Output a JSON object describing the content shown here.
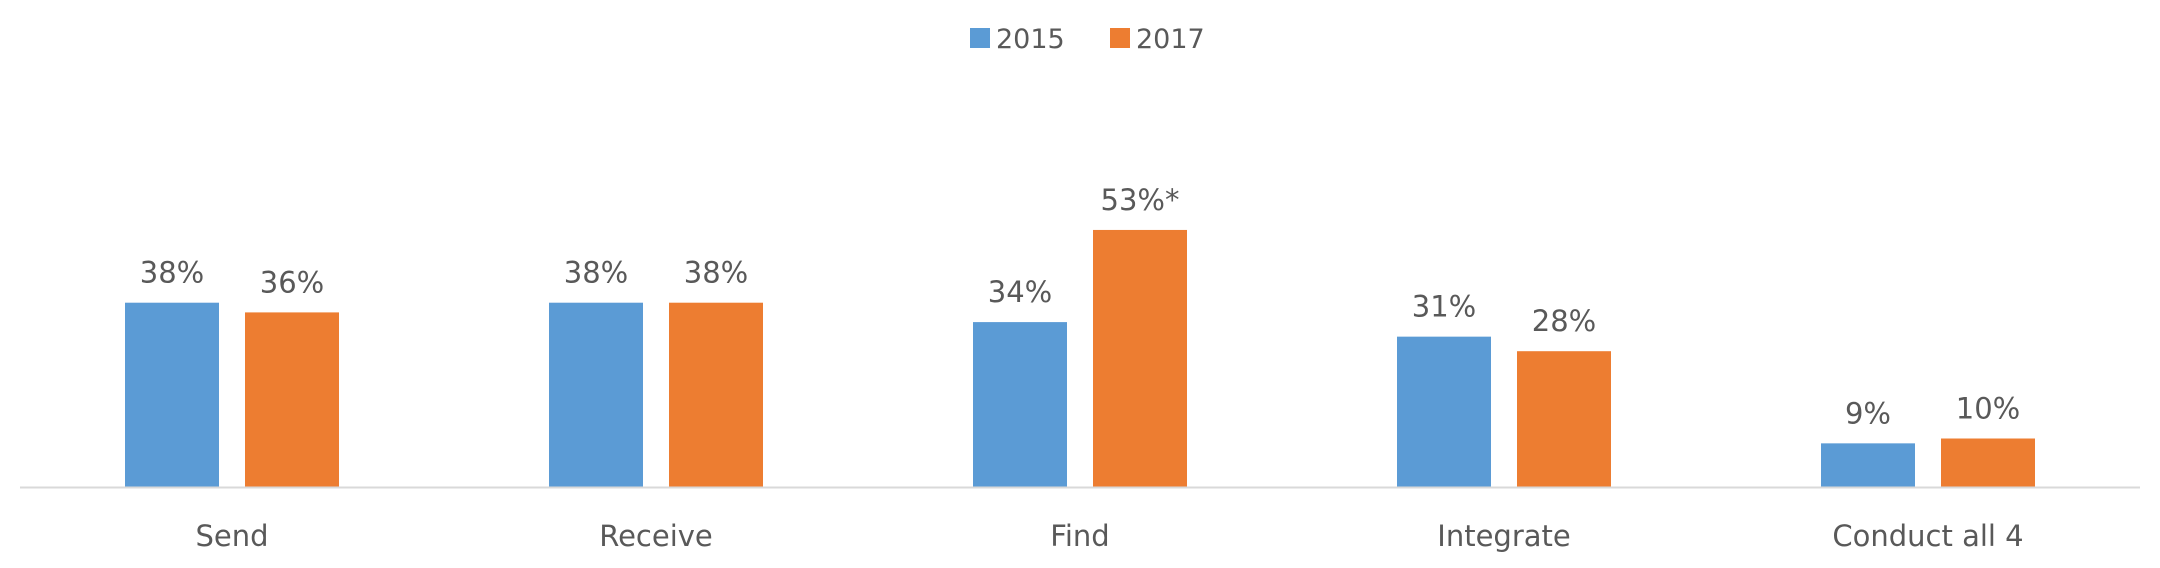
{
  "chart_data": {
    "type": "bar",
    "title": "",
    "xlabel": "",
    "ylabel": "",
    "ylim": [
      0,
      60
    ],
    "grid": false,
    "legend_position": "top-center",
    "categories": [
      "Send",
      "Receive",
      "Find",
      "Integrate",
      "Conduct all 4"
    ],
    "series": [
      {
        "name": "2015",
        "color": "#5b9bd5",
        "values": [
          38,
          38,
          34,
          31,
          9
        ],
        "labels": [
          "38%",
          "38%",
          "34%",
          "31%",
          "9%"
        ]
      },
      {
        "name": "2017",
        "color": "#ed7d31",
        "values": [
          36,
          38,
          53,
          28,
          10
        ],
        "labels": [
          "36%",
          "38%",
          "53%*",
          "28%",
          "10%"
        ]
      }
    ],
    "axis_color": "#d9d9d9",
    "text_color": "#595959"
  }
}
